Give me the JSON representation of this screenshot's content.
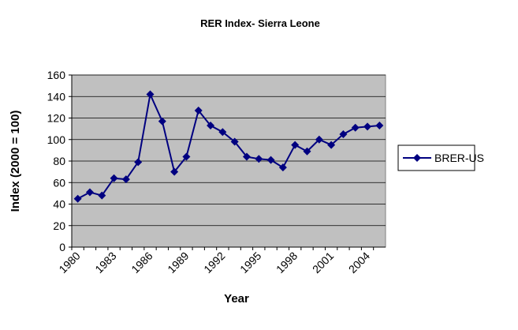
{
  "chart_data": {
    "type": "line",
    "title": "RER Index- Sierra Leone",
    "x_label": "Year",
    "y_label": "Index (2000 = 100)",
    "categories": [
      "1980",
      null,
      null,
      "1983",
      null,
      null,
      "1986",
      null,
      null,
      "1989",
      null,
      null,
      "1992",
      null,
      null,
      "1995",
      null,
      null,
      "1998",
      null,
      null,
      "2001",
      null,
      null,
      "2004",
      null
    ],
    "series": [
      {
        "name": "BRER-US",
        "color": "#000080",
        "values": [
          45,
          51,
          48,
          64,
          63,
          79,
          142,
          117,
          70,
          84,
          127,
          113,
          107,
          98,
          84,
          82,
          81,
          74,
          95,
          89,
          100,
          95,
          105,
          111,
          112,
          113
        ]
      }
    ],
    "ylim": [
      0,
      160
    ],
    "yticks": [
      0,
      20,
      40,
      60,
      80,
      100,
      120,
      140,
      160
    ],
    "grid": true,
    "legend": "right"
  }
}
